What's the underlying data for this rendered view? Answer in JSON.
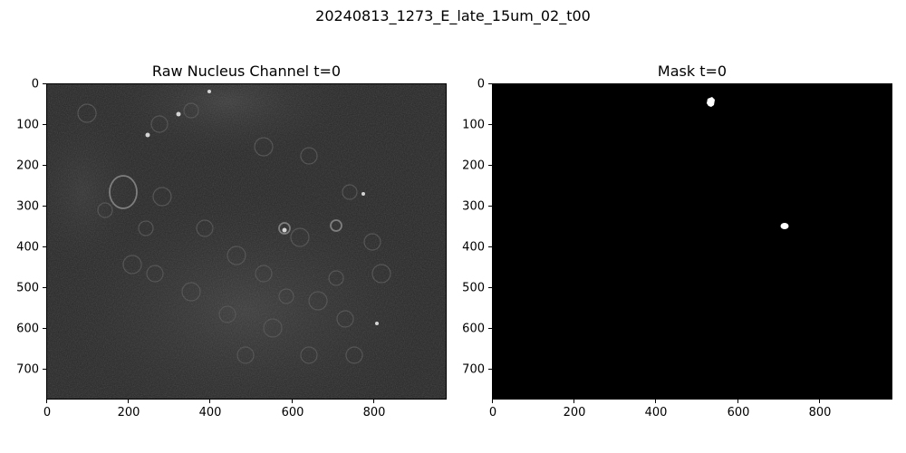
{
  "figure": {
    "suptitle": "20240813_1273_E_late_15um_02_t00"
  },
  "panels": [
    {
      "title": "Raw Nucleus Channel t=0",
      "x_ticks": [
        "0",
        "200",
        "400",
        "600",
        "800"
      ],
      "y_ticks": [
        "0",
        "100",
        "200",
        "300",
        "400",
        "500",
        "600",
        "700"
      ],
      "image_kind": "grayscale-microscopy"
    },
    {
      "title": "Mask t=0",
      "x_ticks": [
        "0",
        "200",
        "400",
        "600",
        "800"
      ],
      "y_ticks": [
        "0",
        "100",
        "200",
        "300",
        "400",
        "500",
        "600",
        "700"
      ],
      "image_kind": "binary-mask"
    }
  ],
  "colors": {
    "raw_background": "#262626",
    "mask_background": "#000000",
    "mask_foreground": "#ffffff"
  }
}
